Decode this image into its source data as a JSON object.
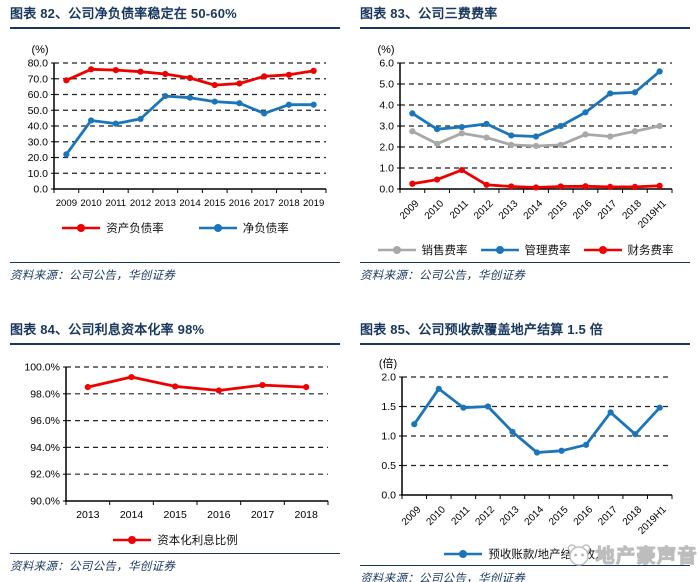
{
  "source_note": "资料来源：公司公告，华创证券",
  "watermark": {
    "icon": "panda-face-icon",
    "text": "地产豪声音"
  },
  "colors": {
    "title_navy": "#17375e",
    "series_red": "#ee0000",
    "series_blue": "#1b75bb",
    "series_gray": "#a8a8a8",
    "axis_black": "#000000",
    "watermark_gray": "#bdbdbd"
  },
  "chart_data": [
    {
      "type": "line",
      "title": "图表 82、公司净负债率稳定在 50-60%",
      "unit": "(%)",
      "xlabel": "",
      "ylabel": "(%)",
      "ylim": [
        0,
        80
      ],
      "yticks": [
        0,
        10,
        20,
        30,
        40,
        50,
        60,
        70,
        80
      ],
      "ytick_labels": [
        "0.0",
        "10.0",
        "20.0",
        "30.0",
        "40.0",
        "50.0",
        "60.0",
        "70.0",
        "80.0"
      ],
      "grid": "horizontal-dashed",
      "legend_position": "bottom",
      "categories": [
        "2009",
        "2010",
        "2011",
        "2012",
        "2013",
        "2014",
        "2015",
        "2016",
        "2017",
        "2018",
        "2019"
      ],
      "series": [
        {
          "name": "资产负债率",
          "color": "#ee0000",
          "values": [
            69.0,
            76.0,
            75.5,
            74.5,
            73.0,
            70.5,
            66.0,
            67.0,
            71.5,
            72.5,
            75.0
          ]
        },
        {
          "name": "净负债率",
          "color": "#1b75bb",
          "values": [
            22.0,
            43.5,
            41.5,
            44.5,
            59.0,
            58.0,
            55.5,
            54.5,
            48.0,
            53.5,
            53.5
          ]
        }
      ]
    },
    {
      "type": "line",
      "title": "图表 83、公司三费费率",
      "unit": "(%)",
      "xlabel": "",
      "ylabel": "(%)",
      "ylim": [
        0,
        6
      ],
      "yticks": [
        0,
        1,
        2,
        3,
        4,
        5,
        6
      ],
      "ytick_labels": [
        "0.0",
        "1.0",
        "2.0",
        "3.0",
        "4.0",
        "5.0",
        "6.0"
      ],
      "grid": "horizontal-dashed",
      "legend_position": "bottom",
      "categories": [
        "2009",
        "2010",
        "2011",
        "2012",
        "2013",
        "2014",
        "2015",
        "2016",
        "2017",
        "2018",
        "2019H1"
      ],
      "series": [
        {
          "name": "销售费率",
          "color": "#a8a8a8",
          "values": [
            2.75,
            2.15,
            2.65,
            2.45,
            2.1,
            2.05,
            2.1,
            2.6,
            2.5,
            2.75,
            3.0
          ]
        },
        {
          "name": "管理费率",
          "color": "#1b75bb",
          "values": [
            3.6,
            2.85,
            2.95,
            3.1,
            2.55,
            2.5,
            3.0,
            3.65,
            4.55,
            4.6,
            5.6
          ]
        },
        {
          "name": "财务费率",
          "color": "#ee0000",
          "values": [
            0.25,
            0.45,
            0.9,
            0.2,
            0.12,
            0.07,
            0.12,
            0.13,
            0.1,
            0.1,
            0.15
          ]
        }
      ]
    },
    {
      "type": "line",
      "title": "图表 84、公司利息资本化率 98%",
      "unit": "",
      "xlabel": "",
      "ylabel": "",
      "ylim": [
        90,
        100
      ],
      "yticks": [
        90,
        92,
        94,
        96,
        98,
        100
      ],
      "ytick_labels": [
        "90.0%",
        "92.0%",
        "94.0%",
        "96.0%",
        "98.0%",
        "100.0%"
      ],
      "grid": "horizontal-dashed",
      "legend_position": "bottom",
      "categories": [
        "2013",
        "2014",
        "2015",
        "2016",
        "2017",
        "2018"
      ],
      "series": [
        {
          "name": "资本化利息比例",
          "color": "#ee0000",
          "values": [
            98.5,
            99.25,
            98.55,
            98.25,
            98.65,
            98.5
          ]
        }
      ]
    },
    {
      "type": "line",
      "title": "图表 85、公司预收款覆盖地产结算 1.5 倍",
      "unit": "(倍)",
      "xlabel": "",
      "ylabel": "(倍)",
      "ylim": [
        0,
        2
      ],
      "yticks": [
        0,
        0.5,
        1,
        1.5,
        2
      ],
      "ytick_labels": [
        "0.0",
        "0.5",
        "1.0",
        "1.5",
        "2.0"
      ],
      "grid": "horizontal-dashed",
      "legend_position": "bottom",
      "categories": [
        "2009",
        "2010",
        "2011",
        "2012",
        "2013",
        "2014",
        "2015",
        "2016",
        "2017",
        "2018",
        "2019H1"
      ],
      "series": [
        {
          "name": "预收账款/地产结算收入",
          "color": "#1b75bb",
          "values": [
            1.2,
            1.8,
            1.48,
            1.5,
            1.07,
            0.72,
            0.75,
            0.85,
            1.4,
            1.03,
            1.48
          ]
        }
      ]
    }
  ]
}
